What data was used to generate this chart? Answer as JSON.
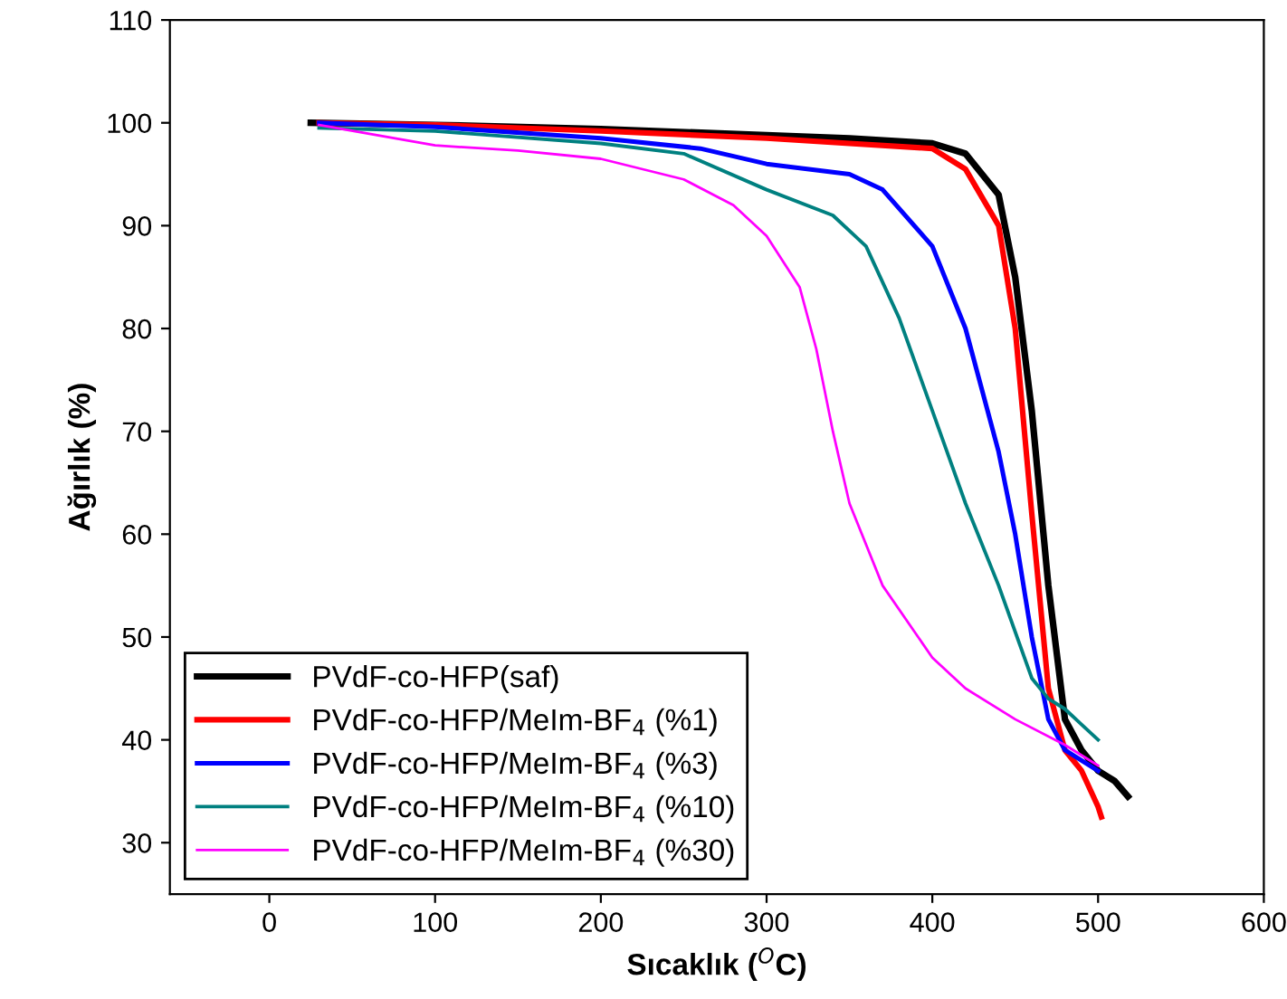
{
  "chart_data": {
    "type": "line",
    "xlabel": "Sıcaklık ($^{O}$C)",
    "ylabel": "Ağırlık (%)",
    "xlim": [
      -60,
      600
    ],
    "ylim": [
      25,
      110
    ],
    "xticks": [
      0,
      100,
      200,
      300,
      400,
      500,
      600
    ],
    "yticks": [
      30,
      40,
      50,
      60,
      70,
      80,
      90,
      100,
      110
    ],
    "grid": false,
    "legend": "bottom left",
    "marker": "none",
    "line_style": "solid",
    "series": [
      {
        "name": "PVdF-co-HFP(saf)",
        "color": "#000000",
        "x": [
          25,
          100,
          200,
          300,
          350,
          400,
          420,
          440,
          450,
          460,
          470,
          480,
          490,
          500,
          510,
          518
        ],
        "values": [
          100,
          99.8,
          99.4,
          98.8,
          98.5,
          98,
          97,
          93,
          85,
          72,
          55,
          42,
          39,
          37,
          36,
          34.5
        ]
      },
      {
        "name": "PVdF-co-HFP/MeIm-BF$_{4}$ (%1)",
        "color": "#ff0000",
        "x": [
          30,
          100,
          200,
          300,
          350,
          400,
          420,
          440,
          450,
          460,
          470,
          480,
          490,
          500,
          502
        ],
        "values": [
          100,
          99.8,
          99.2,
          98.5,
          98,
          97.5,
          95.5,
          90,
          80,
          62,
          45,
          39,
          37,
          33.5,
          32.5
        ]
      },
      {
        "name": "PVdF-co-HFP/MeIm-BF$_{4}$ (%3)",
        "color": "#0000ff",
        "x": [
          30,
          100,
          200,
          260,
          300,
          350,
          370,
          400,
          420,
          440,
          450,
          460,
          470,
          480,
          490,
          500
        ],
        "values": [
          100,
          99.6,
          98.5,
          97.5,
          96,
          95,
          93.5,
          88,
          80,
          68,
          60,
          50,
          42,
          39,
          38,
          37
        ]
      },
      {
        "name": "PVdF-co-HFP/MeIm-BF$_{4}$ (%10)",
        "color": "#008080",
        "x": [
          30,
          100,
          200,
          250,
          300,
          340,
          360,
          380,
          400,
          420,
          440,
          460,
          470,
          480,
          490,
          500
        ],
        "values": [
          99.5,
          99.2,
          98,
          97,
          93.5,
          91,
          88,
          81,
          72,
          63,
          55,
          46,
          44,
          43,
          41.5,
          40
        ]
      },
      {
        "name": "PVdF-co-HFP/MeIm-BF$_{4}$ (%30)",
        "color": "#ff00ff",
        "x": [
          30,
          100,
          150,
          200,
          250,
          280,
          300,
          320,
          330,
          340,
          350,
          370,
          400,
          420,
          450,
          480,
          500
        ],
        "values": [
          99.8,
          97.8,
          97.3,
          96.5,
          94.5,
          92,
          89,
          84,
          78,
          70,
          63,
          55,
          48,
          45,
          42,
          39.5,
          37.5
        ]
      }
    ]
  }
}
